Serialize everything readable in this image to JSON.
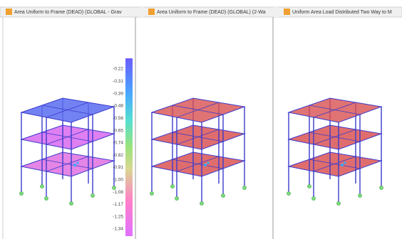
{
  "tabs": [
    {
      "title": "Area Uniform to Frame (DEAD) (GLOBAL - Grav"
    },
    {
      "title": "Area Uniform to Frame (DEAD) (GLOBAL) (2-Wa"
    },
    {
      "title": "Uniform Area Load Distributed Two Way to M"
    }
  ],
  "legend": {
    "values": [
      "-0.22",
      "-0.31",
      "-0.39",
      "-0.48",
      "-0.56",
      "-0.65",
      "-0.74",
      "-0.82",
      "-0.91",
      "-1.00",
      "-1.08",
      "-1.17",
      "-1.25",
      "-1.34"
    ]
  }
}
